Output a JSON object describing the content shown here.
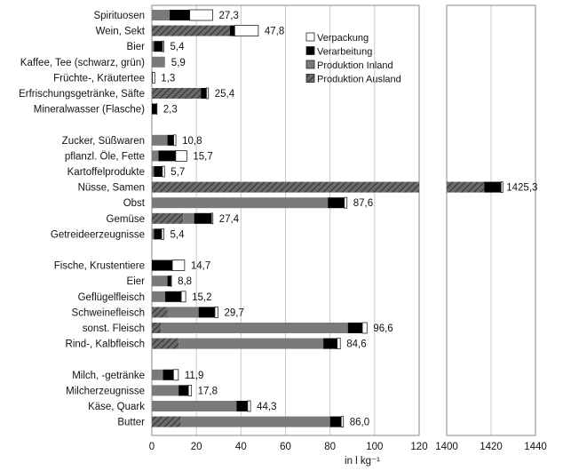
{
  "chart_data": {
    "type": "bar",
    "stacked": true,
    "orientation": "horizontal",
    "xlabel": "in l kg⁻¹",
    "axis_break": true,
    "xlim_main": [
      0,
      120
    ],
    "xticks_main": [
      "0",
      "20",
      "40",
      "60",
      "80",
      "100",
      "120"
    ],
    "xlim_inset": [
      1400,
      1440
    ],
    "xticks_inset": [
      "1400",
      "1420",
      "1440"
    ],
    "grid": "vertical",
    "legend_position": "top-right",
    "categories": [
      "Spirituosen",
      "Wein, Sekt",
      "Bier",
      "Kaffee, Tee (schwarz, grün)",
      "Früchte-, Kräutertee",
      "Erfrischungsgetränke, Säfte",
      "Mineralwasser (Flasche)",
      "Zucker, Süßwaren",
      "pflanzl. Öle, Fette",
      "Kartoffelprodukte",
      "Nüsse, Samen",
      "Obst",
      "Gemüse",
      "Getreideerzeugnisse",
      "Fische, Krustentiere",
      "Eier",
      "Geflügelfleisch",
      "Schweinefleisch",
      "sonst. Fleisch",
      "Rind-, Kalbfleisch",
      "Milch, -getränke",
      "Milcherzeugnisse",
      "Käse, Quark",
      "Butter"
    ],
    "groups": [
      7,
      7,
      6,
      4
    ],
    "series": [
      {
        "name": "Produktion Ausland",
        "values": [
          0,
          35,
          0,
          0,
          0,
          22,
          0,
          0,
          0,
          0,
          1417,
          0,
          14,
          0,
          0,
          0,
          0,
          7,
          4,
          12,
          0,
          0,
          0,
          13
        ]
      },
      {
        "name": "Produktion Inland",
        "values": [
          8,
          0,
          1,
          5.9,
          0,
          0,
          0,
          7,
          3,
          1,
          0,
          79,
          5,
          1,
          0,
          7,
          6,
          14,
          84,
          65,
          5,
          12,
          38,
          67
        ]
      },
      {
        "name": "Verarbeitung",
        "values": [
          9,
          2.2,
          3.8,
          0,
          0.2,
          2.5,
          2.2,
          2.8,
          7.7,
          3.7,
          7.5,
          7.4,
          7.8,
          3.4,
          9.2,
          1.5,
          7.2,
          7.3,
          6.5,
          6.2,
          4.7,
          4.4,
          5,
          5
        ]
      },
      {
        "name": "Verpackung",
        "values": [
          10.3,
          10.6,
          0.6,
          0,
          1.1,
          0.9,
          0.1,
          1,
          5,
          1,
          0.8,
          1.2,
          0.6,
          1,
          5.5,
          0.3,
          2,
          1.4,
          2.1,
          1.4,
          2.2,
          1.4,
          1.3,
          1
        ]
      }
    ],
    "totals": [
      "27,3",
      "47,8",
      "5,4",
      "5,9",
      "1,3",
      "25,4",
      "2,3",
      "10,8",
      "15,7",
      "5,7",
      "1425,3",
      "87,6",
      "27,4",
      "5,4",
      "14,7",
      "8,8",
      "15,2",
      "29,7",
      "96,6",
      "84,6",
      "11,9",
      "17,8",
      "44,3",
      "86,0"
    ],
    "series_colors": {
      "Produktion Ausland": "#555555",
      "Produktion Inland": "#7a7a7a",
      "Verarbeitung": "#000000",
      "Verpackung": "#ffffff"
    },
    "legend": [
      "Verpackung",
      "Verarbeitung",
      "Produktion Inland",
      "Produktion Ausland"
    ]
  }
}
